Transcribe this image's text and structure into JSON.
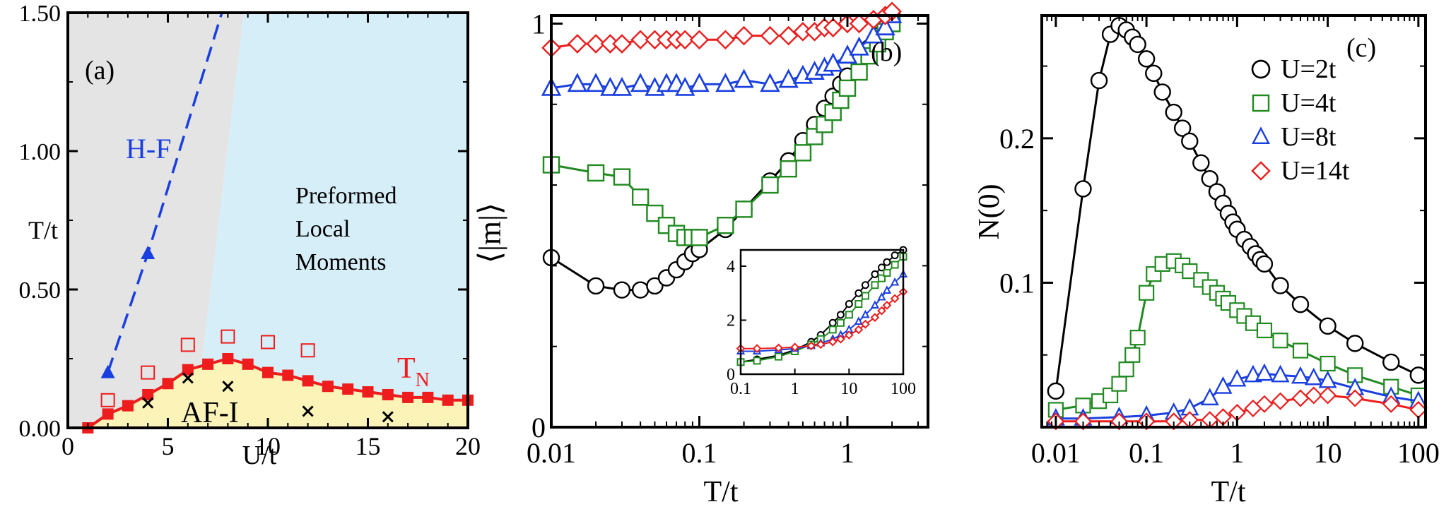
{
  "chart_data": [
    {
      "panel": "(a)",
      "type": "scatter",
      "xlabel": "U/t",
      "ylabel": "T/t",
      "xlim": [
        0,
        20
      ],
      "ylim": [
        0,
        1.5
      ],
      "xticks": [
        "0",
        "5",
        "10",
        "15",
        "20"
      ],
      "yticks": [
        "0.00",
        "0.50",
        "1.00",
        "1.50"
      ],
      "regions": [
        {
          "label": "Preformed Local Moments",
          "lines": [
            "Preformed",
            "Local",
            "Moments"
          ],
          "color": "#d6eef8"
        },
        {
          "label": "AF-I",
          "color": "#fbf3b8"
        },
        {
          "label": "",
          "color": "#e4e4e4"
        }
      ],
      "series": [
        {
          "name": "T_N",
          "label_main": "T",
          "label_sub": "N",
          "color": "#ee1c1c",
          "marker": "filled-square",
          "x": [
            1,
            2,
            3,
            4,
            5,
            6,
            7,
            8,
            9,
            10,
            11,
            12,
            13,
            14,
            15,
            16,
            17,
            18,
            19,
            20
          ],
          "y": [
            0.0,
            0.05,
            0.08,
            0.12,
            0.16,
            0.21,
            0.23,
            0.25,
            0.23,
            0.2,
            0.19,
            0.17,
            0.15,
            0.14,
            0.13,
            0.12,
            0.11,
            0.11,
            0.1,
            0.1
          ]
        },
        {
          "name": "open-squares",
          "color": "#ee1c1c",
          "marker": "open-square",
          "x": [
            2,
            4,
            6,
            8,
            10,
            12
          ],
          "y": [
            0.1,
            0.2,
            0.3,
            0.33,
            0.31,
            0.28
          ]
        },
        {
          "name": "H-F",
          "label": "H-F",
          "color": "#1a3fe0",
          "marker": "filled-triangle",
          "dashed": true,
          "x": [
            2,
            4
          ],
          "y": [
            0.2,
            0.63
          ]
        },
        {
          "name": "crosses",
          "color": "#000000",
          "marker": "cross",
          "x": [
            4,
            6,
            8,
            12,
            16
          ],
          "y": [
            0.09,
            0.18,
            0.15,
            0.06,
            0.04
          ]
        }
      ],
      "hf_line": {
        "x": [
          2,
          4,
          7.7
        ],
        "y": [
          0.2,
          0.63,
          1.5
        ]
      }
    },
    {
      "panel": "(b)",
      "type": "line",
      "xscale": "log",
      "xlabel": "T/t",
      "ylabel": "⟨|m|⟩",
      "xlim": [
        0.01,
        3.5
      ],
      "ylim": [
        0,
        1.02
      ],
      "xticks": [
        "0.01",
        "0.1",
        "1"
      ],
      "yticks": [
        "0",
        "1"
      ],
      "series": [
        {
          "name": "U=2t",
          "color": "#000000",
          "marker": "circle",
          "x": [
            0.01,
            0.02,
            0.03,
            0.04,
            0.05,
            0.06,
            0.07,
            0.08,
            0.09,
            0.1,
            0.15,
            0.2,
            0.3,
            0.4,
            0.5,
            0.6,
            0.7,
            0.8,
            0.9,
            1.0,
            1.2,
            1.4,
            1.6,
            1.8,
            2.0
          ],
          "y": [
            0.42,
            0.35,
            0.34,
            0.34,
            0.35,
            0.37,
            0.39,
            0.41,
            0.43,
            0.44,
            0.49,
            0.54,
            0.61,
            0.66,
            0.71,
            0.75,
            0.79,
            0.82,
            0.85,
            0.87,
            0.91,
            0.94,
            0.97,
            0.99,
            1.02
          ]
        },
        {
          "name": "U=4t",
          "color": "#218a21",
          "marker": "square",
          "x": [
            0.01,
            0.02,
            0.03,
            0.04,
            0.05,
            0.06,
            0.07,
            0.08,
            0.09,
            0.1,
            0.15,
            0.2,
            0.3,
            0.4,
            0.5,
            0.6,
            0.7,
            0.8,
            0.9,
            1.0,
            1.2,
            1.4,
            1.6,
            1.8,
            2.0
          ],
          "y": [
            0.65,
            0.63,
            0.62,
            0.57,
            0.53,
            0.5,
            0.48,
            0.47,
            0.47,
            0.47,
            0.5,
            0.54,
            0.6,
            0.64,
            0.68,
            0.72,
            0.75,
            0.78,
            0.81,
            0.84,
            0.88,
            0.92,
            0.95,
            0.98,
            1.0
          ]
        },
        {
          "name": "U=8t",
          "color": "#1a3fe0",
          "marker": "triangle",
          "x": [
            0.01,
            0.015,
            0.02,
            0.025,
            0.03,
            0.04,
            0.05,
            0.06,
            0.07,
            0.08,
            0.1,
            0.15,
            0.2,
            0.3,
            0.4,
            0.5,
            0.6,
            0.7,
            0.8,
            1.0,
            1.2,
            1.5,
            1.8,
            2.0
          ],
          "y": [
            0.84,
            0.85,
            0.85,
            0.84,
            0.84,
            0.85,
            0.84,
            0.85,
            0.85,
            0.84,
            0.85,
            0.85,
            0.86,
            0.85,
            0.86,
            0.87,
            0.88,
            0.89,
            0.9,
            0.92,
            0.94,
            0.97,
            0.99,
            1.02
          ]
        },
        {
          "name": "U=14t",
          "color": "#ee1c1c",
          "marker": "diamond",
          "x": [
            0.01,
            0.015,
            0.02,
            0.025,
            0.03,
            0.04,
            0.05,
            0.06,
            0.07,
            0.08,
            0.1,
            0.15,
            0.2,
            0.3,
            0.4,
            0.5,
            0.6,
            0.7,
            0.8,
            1.0,
            1.2,
            1.5,
            1.8,
            2.0
          ],
          "y": [
            0.94,
            0.95,
            0.95,
            0.95,
            0.95,
            0.96,
            0.96,
            0.96,
            0.96,
            0.96,
            0.96,
            0.96,
            0.97,
            0.97,
            0.97,
            0.98,
            0.98,
            0.99,
            0.99,
            1.0,
            1.0,
            1.01,
            1.02,
            1.03
          ]
        }
      ],
      "inset": {
        "xscale": "log",
        "xlim": [
          0.1,
          100
        ],
        "ylim": [
          0,
          4.6
        ],
        "xticks": [
          "0.1",
          "1",
          "10",
          "100"
        ],
        "yticks": [
          "0",
          "2",
          "4"
        ],
        "series": [
          {
            "name": "U=2t",
            "color": "#000000",
            "marker": "circle",
            "x": [
              0.1,
              0.2,
              0.5,
              1,
              2,
              3,
              5,
              7,
              10,
              15,
              20,
              30,
              40,
              50,
              70,
              100
            ],
            "y": [
              0.45,
              0.55,
              0.7,
              0.9,
              1.2,
              1.45,
              1.9,
              2.2,
              2.6,
              3.0,
              3.3,
              3.7,
              3.95,
              4.15,
              4.4,
              4.6
            ]
          },
          {
            "name": "U=4t",
            "color": "#218a21",
            "marker": "square",
            "x": [
              0.1,
              0.2,
              0.5,
              1,
              2,
              3,
              5,
              7,
              10,
              15,
              20,
              30,
              40,
              50,
              70,
              100
            ],
            "y": [
              0.45,
              0.5,
              0.65,
              0.85,
              1.1,
              1.3,
              1.65,
              1.9,
              2.2,
              2.6,
              2.9,
              3.3,
              3.55,
              3.75,
              4.05,
              4.35
            ]
          },
          {
            "name": "U=8t",
            "color": "#1a3fe0",
            "marker": "triangle",
            "x": [
              0.1,
              0.2,
              0.5,
              1,
              2,
              3,
              5,
              7,
              10,
              15,
              20,
              30,
              40,
              50,
              70,
              100
            ],
            "y": [
              0.85,
              0.85,
              0.9,
              0.95,
              1.05,
              1.15,
              1.3,
              1.45,
              1.65,
              1.95,
              2.2,
              2.55,
              2.85,
              3.1,
              3.4,
              3.7
            ]
          },
          {
            "name": "U=14t",
            "color": "#ee1c1c",
            "marker": "diamond",
            "x": [
              0.1,
              0.2,
              0.5,
              1,
              2,
              3,
              5,
              7,
              10,
              15,
              20,
              30,
              40,
              50,
              70,
              100
            ],
            "y": [
              0.95,
              0.95,
              0.97,
              1.0,
              1.05,
              1.1,
              1.2,
              1.3,
              1.45,
              1.65,
              1.85,
              2.1,
              2.35,
              2.55,
              2.8,
              3.05
            ]
          }
        ]
      }
    },
    {
      "panel": "(c)",
      "type": "line",
      "xscale": "log",
      "xlabel": "T/t",
      "ylabel": "N(0)",
      "xlim": [
        0.007,
        120
      ],
      "ylim": [
        0,
        0.285
      ],
      "xticks": [
        "0.01",
        "0.1",
        "1",
        "10",
        "100"
      ],
      "yticks": [
        "0.1",
        "0.2"
      ],
      "legend_position": "top-right",
      "series": [
        {
          "name": "U=2t",
          "color": "#000000",
          "marker": "circle",
          "x": [
            0.01,
            0.02,
            0.03,
            0.04,
            0.05,
            0.06,
            0.07,
            0.08,
            0.1,
            0.12,
            0.15,
            0.2,
            0.25,
            0.3,
            0.4,
            0.5,
            0.6,
            0.7,
            0.8,
            0.9,
            1.0,
            1.2,
            1.4,
            1.6,
            1.8,
            2.0,
            3,
            5,
            10,
            20,
            50,
            100
          ],
          "y": [
            0.025,
            0.165,
            0.24,
            0.272,
            0.278,
            0.275,
            0.27,
            0.265,
            0.255,
            0.245,
            0.232,
            0.218,
            0.207,
            0.198,
            0.183,
            0.172,
            0.163,
            0.155,
            0.148,
            0.142,
            0.137,
            0.13,
            0.125,
            0.12,
            0.116,
            0.113,
            0.098,
            0.085,
            0.07,
            0.058,
            0.045,
            0.036
          ]
        },
        {
          "name": "U=4t",
          "color": "#218a21",
          "marker": "square",
          "x": [
            0.01,
            0.02,
            0.03,
            0.04,
            0.05,
            0.06,
            0.07,
            0.08,
            0.1,
            0.12,
            0.15,
            0.2,
            0.25,
            0.3,
            0.4,
            0.5,
            0.6,
            0.7,
            0.8,
            1.0,
            1.2,
            1.5,
            2.0,
            3,
            5,
            10,
            20,
            50,
            100
          ],
          "y": [
            0.012,
            0.015,
            0.018,
            0.022,
            0.03,
            0.04,
            0.05,
            0.062,
            0.093,
            0.106,
            0.113,
            0.115,
            0.112,
            0.108,
            0.102,
            0.097,
            0.093,
            0.089,
            0.086,
            0.081,
            0.077,
            0.072,
            0.067,
            0.06,
            0.053,
            0.044,
            0.036,
            0.028,
            0.022
          ]
        },
        {
          "name": "U=8t",
          "color": "#1a3fe0",
          "marker": "triangle",
          "x": [
            0.01,
            0.02,
            0.05,
            0.1,
            0.2,
            0.3,
            0.5,
            0.7,
            1.0,
            1.5,
            2.0,
            3,
            5,
            7,
            10,
            20,
            50,
            100
          ],
          "y": [
            0.006,
            0.006,
            0.007,
            0.008,
            0.01,
            0.013,
            0.02,
            0.028,
            0.033,
            0.036,
            0.037,
            0.036,
            0.035,
            0.034,
            0.032,
            0.027,
            0.021,
            0.018
          ]
        },
        {
          "name": "U=14t",
          "color": "#ee1c1c",
          "marker": "diamond",
          "x": [
            0.01,
            0.02,
            0.05,
            0.1,
            0.2,
            0.3,
            0.5,
            0.7,
            1.0,
            1.5,
            2.0,
            3,
            5,
            7,
            10,
            20,
            50,
            100
          ],
          "y": [
            0.004,
            0.004,
            0.004,
            0.004,
            0.004,
            0.005,
            0.005,
            0.007,
            0.01,
            0.013,
            0.016,
            0.018,
            0.02,
            0.022,
            0.022,
            0.02,
            0.016,
            0.012
          ]
        }
      ]
    }
  ]
}
